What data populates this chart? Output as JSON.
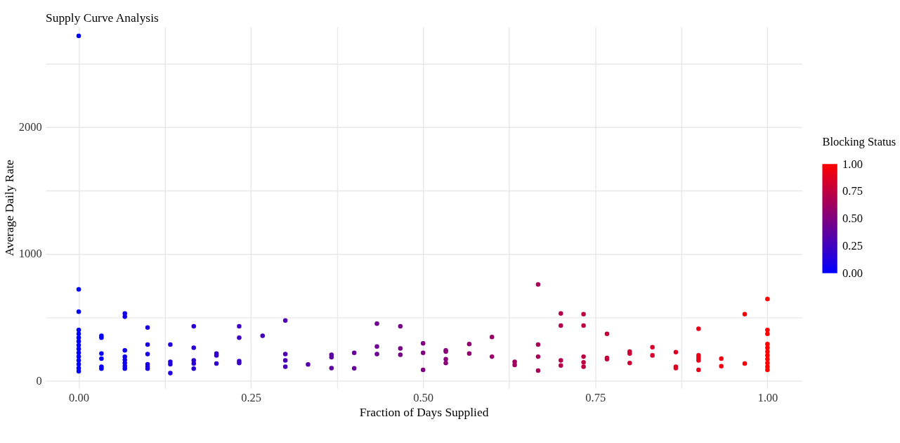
{
  "chart_data": {
    "type": "scatter",
    "title": "Supply Curve Analysis",
    "xlabel": "Fraction of Days Supplied",
    "ylabel": "Average Daily Rate",
    "legend_title": "Blocking Status",
    "grid": true,
    "xlim": [
      -0.048,
      1.05
    ],
    "ylim": [
      -60,
      2790
    ],
    "xticks": [
      {
        "value": 0,
        "label": "0.00"
      },
      {
        "value": 0.125,
        "label": null
      },
      {
        "value": 0.25,
        "label": "0.25"
      },
      {
        "value": 0.375,
        "label": null
      },
      {
        "value": 0.5,
        "label": "0.50"
      },
      {
        "value": 0.625,
        "label": null
      },
      {
        "value": 0.75,
        "label": "0.75"
      },
      {
        "value": 0.875,
        "label": null
      },
      {
        "value": 1,
        "label": "1.00"
      }
    ],
    "yticks": [
      0,
      {
        "value": 500,
        "label": null
      },
      1000,
      {
        "value": 1500,
        "label": null
      },
      2000,
      {
        "value": 2500,
        "label": null
      }
    ],
    "clim": [
      0,
      1
    ],
    "cticks": [
      {
        "value": 0,
        "label": "0.00"
      },
      {
        "value": 0.25,
        "label": "0.25"
      },
      {
        "value": 0.5,
        "label": "0.50"
      },
      {
        "value": 0.75,
        "label": "0.75"
      },
      {
        "value": 1,
        "label": "1.00"
      }
    ],
    "series": [
      {
        "x": [
          0,
          0,
          0,
          0,
          0,
          0,
          0,
          0,
          0,
          0,
          0,
          0,
          0,
          0,
          0,
          0.033,
          0.033,
          0.033,
          0.033,
          0.033,
          0.033,
          0.067,
          0.067,
          0.067,
          0.067,
          0.067,
          0.067,
          0.067,
          0.067,
          0.1,
          0.1,
          0.1,
          0.1,
          0.1,
          0.1,
          0.133,
          0.133,
          0.133,
          0.133,
          0.167,
          0.167,
          0.167,
          0.167,
          0.167,
          0.2,
          0.2,
          0.2,
          0.233,
          0.233,
          0.233,
          0.233,
          0.267,
          0.3,
          0.3,
          0.3,
          0.3,
          0.333,
          0.367,
          0.367,
          0.367,
          0.4,
          0.4,
          0.433,
          0.433,
          0.433,
          0.467,
          0.467,
          0.467,
          0.5,
          0.5,
          0.5,
          0.533,
          0.533,
          0.533,
          0.533,
          0.567,
          0.567,
          0.6,
          0.6,
          0.633,
          0.633,
          0.667,
          0.667,
          0.667,
          0.667,
          0.7,
          0.7,
          0.7,
          0.7,
          0.733,
          0.733,
          0.733,
          0.733,
          0.733,
          0.767,
          0.767,
          0.767,
          0.8,
          0.8,
          0.8,
          0.833,
          0.833,
          0.867,
          0.867,
          0.867,
          0.9,
          0.9,
          0.9,
          0.9,
          0.9,
          0.933,
          0.933,
          0.967,
          0.967,
          1,
          1,
          1,
          1,
          1,
          1,
          1,
          1,
          1,
          1,
          1
        ],
        "values": [
          2720,
          720,
          545,
          400,
          370,
          340,
          310,
          280,
          250,
          220,
          190,
          160,
          130,
          100,
          75,
          355,
          340,
          215,
          175,
          110,
          95,
          530,
          505,
          240,
          190,
          165,
          140,
          115,
          95,
          420,
          285,
          210,
          130,
          110,
          95,
          285,
          150,
          130,
          60,
          430,
          260,
          160,
          135,
          95,
          215,
          200,
          135,
          430,
          340,
          155,
          140,
          355,
          475,
          210,
          160,
          110,
          128,
          205,
          185,
          100,
          220,
          98,
          450,
          270,
          210,
          430,
          255,
          205,
          295,
          220,
          85,
          240,
          230,
          170,
          140,
          290,
          215,
          345,
          190,
          150,
          125,
          760,
          285,
          190,
          80,
          530,
          435,
          160,
          120,
          525,
          435,
          190,
          145,
          110,
          370,
          180,
          170,
          230,
          215,
          140,
          265,
          200,
          225,
          110,
          100,
          410,
          200,
          180,
          160,
          85,
          175,
          115,
          525,
          135,
          645,
          400,
          370,
          290,
          260,
          230,
          200,
          170,
          140,
          110,
          85
        ],
        "cvalues": [
          0,
          0,
          0,
          0,
          0,
          0,
          0,
          0,
          0,
          0,
          0,
          0,
          0,
          0,
          0,
          0.033,
          0.033,
          0.033,
          0.033,
          0.033,
          0.033,
          0.067,
          0.067,
          0.067,
          0.067,
          0.067,
          0.067,
          0.067,
          0.067,
          0.1,
          0.1,
          0.1,
          0.1,
          0.1,
          0.1,
          0.133,
          0.133,
          0.133,
          0.133,
          0.167,
          0.167,
          0.167,
          0.167,
          0.167,
          0.2,
          0.2,
          0.2,
          0.233,
          0.233,
          0.233,
          0.233,
          0.267,
          0.3,
          0.3,
          0.3,
          0.3,
          0.333,
          0.367,
          0.367,
          0.367,
          0.4,
          0.4,
          0.433,
          0.433,
          0.433,
          0.467,
          0.467,
          0.467,
          0.5,
          0.5,
          0.5,
          0.533,
          0.533,
          0.533,
          0.533,
          0.567,
          0.567,
          0.6,
          0.6,
          0.633,
          0.633,
          0.667,
          0.667,
          0.667,
          0.667,
          0.7,
          0.7,
          0.7,
          0.7,
          0.733,
          0.733,
          0.733,
          0.733,
          0.733,
          0.767,
          0.767,
          0.767,
          0.8,
          0.8,
          0.8,
          0.833,
          0.833,
          0.867,
          0.867,
          0.867,
          0.9,
          0.9,
          0.9,
          0.9,
          0.9,
          0.933,
          0.933,
          0.967,
          0.967,
          1,
          1,
          1,
          1,
          1,
          1,
          1,
          1,
          1,
          1,
          1
        ]
      }
    ]
  }
}
